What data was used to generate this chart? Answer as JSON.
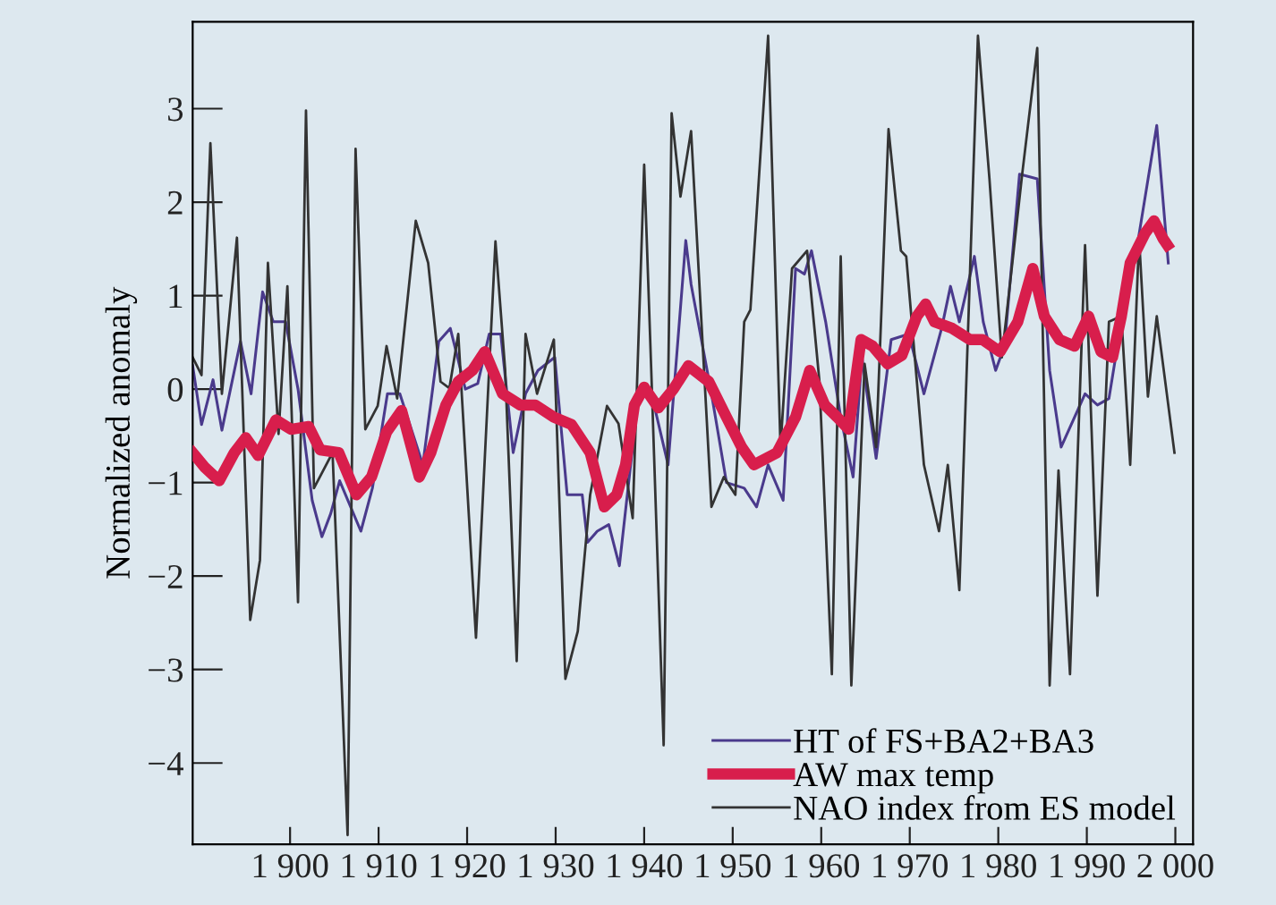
{
  "chart_data": {
    "type": "line",
    "ylabel": "Normalized anomaly",
    "xlim": [
      1889,
      2002
    ],
    "ylim": [
      -4.87,
      3.93
    ],
    "xticks": [
      {
        "value": 1900,
        "label": "1 900"
      },
      {
        "value": 1910,
        "label": "1 910"
      },
      {
        "value": 1920,
        "label": "1 920"
      },
      {
        "value": 1930,
        "label": "1 930"
      },
      {
        "value": 1940,
        "label": "1 940"
      },
      {
        "value": 1950,
        "label": "1 950"
      },
      {
        "value": 1960,
        "label": "1 960"
      },
      {
        "value": 1970,
        "label": "1 970"
      },
      {
        "value": 1980,
        "label": "1 980"
      },
      {
        "value": 1990,
        "label": "1 990"
      },
      {
        "value": 2000,
        "label": "2 000"
      }
    ],
    "yticks": [
      {
        "value": 3,
        "label": "3"
      },
      {
        "value": 2,
        "label": "2"
      },
      {
        "value": 1,
        "label": "1"
      },
      {
        "value": 0,
        "label": "0"
      },
      {
        "value": -1,
        "label": "−1"
      },
      {
        "value": -2,
        "label": "−2"
      },
      {
        "value": -3,
        "label": "−3"
      },
      {
        "value": -4,
        "label": "−4"
      }
    ],
    "grid": false,
    "legend": "bottom right",
    "marker": "none",
    "line_style": "solid",
    "series": [
      {
        "name": "HT of FS+BA2+BA3",
        "color": "#4a3a8c",
        "x": [
          1889,
          1890,
          1891.3,
          1892.3,
          1894.4,
          1895.6,
          1896.9,
          1898.1,
          1899.5,
          1900.9,
          1902.5,
          1903.6,
          1904.6,
          1905.6,
          1908,
          1909.3,
          1911,
          1912.4,
          1915,
          1916.8,
          1918.1,
          1919.8,
          1921.2,
          1922.5,
          1923.8,
          1925.2,
          1926.6,
          1928,
          1929.9,
          1931.3,
          1933,
          1933.6,
          1934.7,
          1936,
          1937.2,
          1938.4,
          1939.4,
          1940.7,
          1942.7,
          1944.7,
          1945.3,
          1947.6,
          1949.3,
          1951.3,
          1952.7,
          1954,
          1955.7,
          1957.1,
          1958.1,
          1958.9,
          1960.5,
          1962.2,
          1963.6,
          1964.6,
          1966.2,
          1967.9,
          1969.9,
          1971.6,
          1973.6,
          1974.6,
          1975.6,
          1977.3,
          1978.3,
          1979.7,
          1980.7,
          1982.4,
          1984.4,
          1985.8,
          1987.1,
          1989.8,
          1991.2,
          1992.5,
          1993.9,
          1995.6,
          1997.9,
          1999.2
        ],
        "values": [
          0.25,
          -0.38,
          0.1,
          -0.44,
          0.51,
          -0.05,
          1.04,
          0.72,
          0.72,
          0.0,
          -1.19,
          -1.58,
          -1.33,
          -0.98,
          -1.52,
          -1.06,
          -0.05,
          -0.05,
          -0.81,
          0.51,
          0.65,
          0.0,
          0.06,
          0.59,
          0.59,
          -0.68,
          -0.05,
          0.2,
          0.34,
          -1.13,
          -1.13,
          -1.64,
          -1.52,
          -1.45,
          -1.89,
          -0.87,
          -0.05,
          0.0,
          -0.81,
          1.59,
          1.12,
          -0.05,
          -1.0,
          -1.06,
          -1.26,
          -0.81,
          -1.19,
          1.29,
          1.23,
          1.48,
          0.72,
          -0.3,
          -0.94,
          0.34,
          -0.74,
          0.53,
          0.59,
          -0.05,
          0.65,
          1.1,
          0.72,
          1.42,
          0.72,
          0.2,
          0.46,
          2.3,
          2.25,
          0.2,
          -0.62,
          -0.05,
          -0.17,
          -0.1,
          0.72,
          1.48,
          2.82,
          1.35
        ]
      },
      {
        "name": "AW max temp",
        "color": "#d81e4c",
        "x": [
          1889,
          1890.4,
          1892,
          1893.7,
          1895,
          1896.4,
          1898.4,
          1900.1,
          1902.1,
          1903.4,
          1905.5,
          1907.5,
          1909.2,
          1910.9,
          1912.6,
          1914.6,
          1915.9,
          1917.6,
          1919,
          1920.6,
          1922,
          1924,
          1926,
          1927.7,
          1929.8,
          1931.8,
          1933.9,
          1935.5,
          1936.9,
          1937.9,
          1938.9,
          1940,
          1941.6,
          1943.3,
          1945,
          1947.3,
          1949.3,
          1951,
          1952.4,
          1955,
          1957.1,
          1958.7,
          1960.4,
          1961.8,
          1963.1,
          1964.5,
          1965.8,
          1967.5,
          1969.1,
          1970.8,
          1971.8,
          1972.8,
          1974.8,
          1976.8,
          1978.2,
          1980.2,
          1982.2,
          1983.9,
          1985.2,
          1986.9,
          1988.6,
          1990.2,
          1991.6,
          1992.9,
          1993.9,
          1994.9,
          1996.6,
          1997.6,
          1998.6,
          1999.1
        ],
        "values": [
          -0.68,
          -0.84,
          -0.98,
          -0.68,
          -0.52,
          -0.71,
          -0.33,
          -0.43,
          -0.4,
          -0.65,
          -0.68,
          -1.13,
          -0.94,
          -0.46,
          -0.23,
          -0.94,
          -0.68,
          -0.17,
          0.08,
          0.2,
          0.4,
          -0.05,
          -0.17,
          -0.17,
          -0.3,
          -0.38,
          -0.68,
          -1.26,
          -1.13,
          -0.81,
          -0.17,
          0.02,
          -0.2,
          0.0,
          0.25,
          0.08,
          -0.3,
          -0.62,
          -0.81,
          -0.68,
          -0.3,
          0.2,
          -0.17,
          -0.3,
          -0.43,
          0.53,
          0.46,
          0.27,
          0.36,
          0.78,
          0.91,
          0.72,
          0.65,
          0.53,
          0.53,
          0.4,
          0.72,
          1.29,
          0.78,
          0.53,
          0.46,
          0.78,
          0.4,
          0.34,
          0.78,
          1.35,
          1.67,
          1.8,
          1.61,
          1.54
        ]
      },
      {
        "name": "NAO index from ES model",
        "color": "#333333",
        "x": [
          1889,
          1890,
          1891,
          1892.3,
          1894,
          1895.5,
          1896.6,
          1897.5,
          1898.7,
          1899.7,
          1900.9,
          1901.8,
          1902.7,
          1904.8,
          1906.5,
          1907.4,
          1908.5,
          1909.9,
          1910.9,
          1912.1,
          1914.2,
          1915.6,
          1917,
          1918,
          1919,
          1921,
          1923.2,
          1924.3,
          1925.6,
          1926.6,
          1927.9,
          1929.8,
          1931.1,
          1932.5,
          1933.9,
          1935.8,
          1937.1,
          1938.7,
          1940,
          1940.8,
          1942.2,
          1943.1,
          1944.1,
          1945.3,
          1947.6,
          1949,
          1950.3,
          1951.3,
          1952,
          1954,
          1955.4,
          1956.7,
          1958.4,
          1959.8,
          1961.2,
          1962.2,
          1963.4,
          1964.9,
          1966.2,
          1967.6,
          1969,
          1969.6,
          1971.6,
          1973.3,
          1974.3,
          1975.6,
          1977.7,
          1979,
          1980.4,
          1982.7,
          1984.4,
          1985.8,
          1986.8,
          1988.1,
          1989.8,
          1991.2,
          1992.5,
          1993.9,
          1994.9,
          1995.9,
          1996.9,
          1997.9,
          1999.9
        ],
        "values": [
          0.34,
          0.15,
          2.63,
          -0.05,
          1.62,
          -2.47,
          -1.83,
          1.35,
          -0.48,
          1.1,
          -2.28,
          2.98,
          -1.06,
          -0.68,
          -4.77,
          2.57,
          -0.43,
          -0.18,
          0.46,
          -0.1,
          1.8,
          1.35,
          0.08,
          0.01,
          0.59,
          -2.66,
          1.58,
          0.2,
          -2.91,
          0.59,
          -0.05,
          0.53,
          -3.1,
          -2.59,
          -1.13,
          -0.18,
          -0.37,
          -1.38,
          2.4,
          0.2,
          -3.81,
          2.95,
          2.06,
          2.76,
          -1.26,
          -0.94,
          -1.13,
          0.72,
          0.85,
          3.78,
          -0.62,
          1.29,
          1.48,
          0.08,
          -3.05,
          1.42,
          -3.17,
          0.27,
          -0.62,
          2.78,
          1.48,
          1.42,
          -0.81,
          -1.52,
          -0.81,
          -2.15,
          3.78,
          2.25,
          0.34,
          2.3,
          3.65,
          -3.17,
          -0.87,
          -3.05,
          1.54,
          -2.21,
          0.72,
          0.78,
          -0.81,
          1.62,
          -0.08,
          0.78,
          -0.68
        ]
      }
    ]
  }
}
